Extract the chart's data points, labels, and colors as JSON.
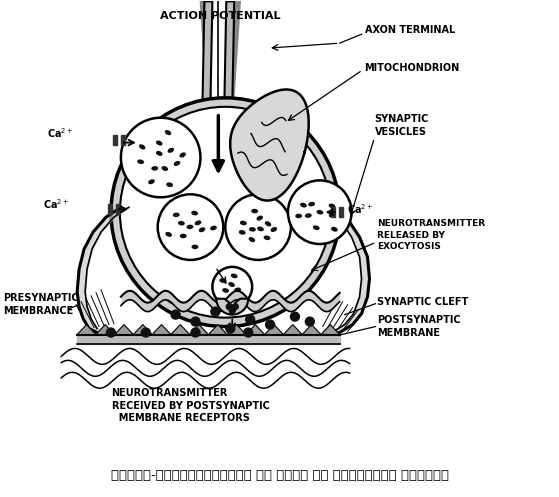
{
  "caption": "चित्र-युग्मानुबन्ध पर आवेग का रासायनिक संवहन।",
  "bg_color": "#ffffff",
  "labels": {
    "action_potential": "ACTION POTENTIAL",
    "axon_terminal": "AXON TERMINAL",
    "mitochondrion": "MITOCHONDRION",
    "synaptic_vesicles": "SYNAPTIC\nVESICLES",
    "neurotransmitter_released": "NEUROTRANSMITTER\nRELEASED BY\nEXOCYTOSIS",
    "synaptic_cleft": "SYNAPTIC CLEFT",
    "postsynaptic_membrane": "POSTSYNAPTIC\nMEMBRANE",
    "presynaptic_membrane": "PRESYNAPTIC\nMEMBRANCE",
    "neurotransmitter_received": "NEUROTRANSMITTER\nRECEIVED BY POSTSYNAPTIC\n  MEMBRANE RECEPTORS"
  },
  "lc": "#000000",
  "label_fs": 7.0,
  "caption_fs": 9.5
}
